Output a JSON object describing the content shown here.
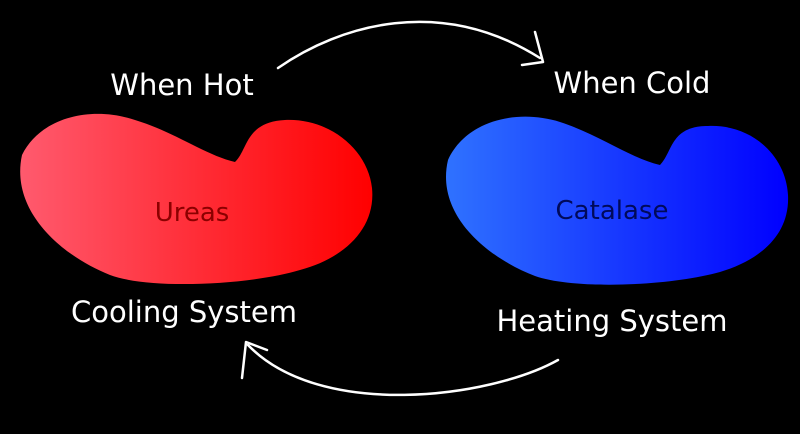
{
  "colors": {
    "background": "#000000",
    "label_text": "#ffffff",
    "hot_blob_light": "#ff5a6e",
    "hot_blob_dark": "#ff0000",
    "hot_enzyme_text": "#8b0000",
    "cold_blob_light": "#2f72ff",
    "cold_blob_dark": "#0000ff",
    "cold_enzyme_text": "#000a5a",
    "arrow": "#ffffff"
  },
  "hot": {
    "condition": "When Hot",
    "enzyme": "Ureas",
    "system": "Cooling System"
  },
  "cold": {
    "condition": "When Cold",
    "enzyme": "Catalase",
    "system": "Heating System"
  },
  "arrows": {
    "top": "arrow-right",
    "bottom": "arrow-left"
  }
}
